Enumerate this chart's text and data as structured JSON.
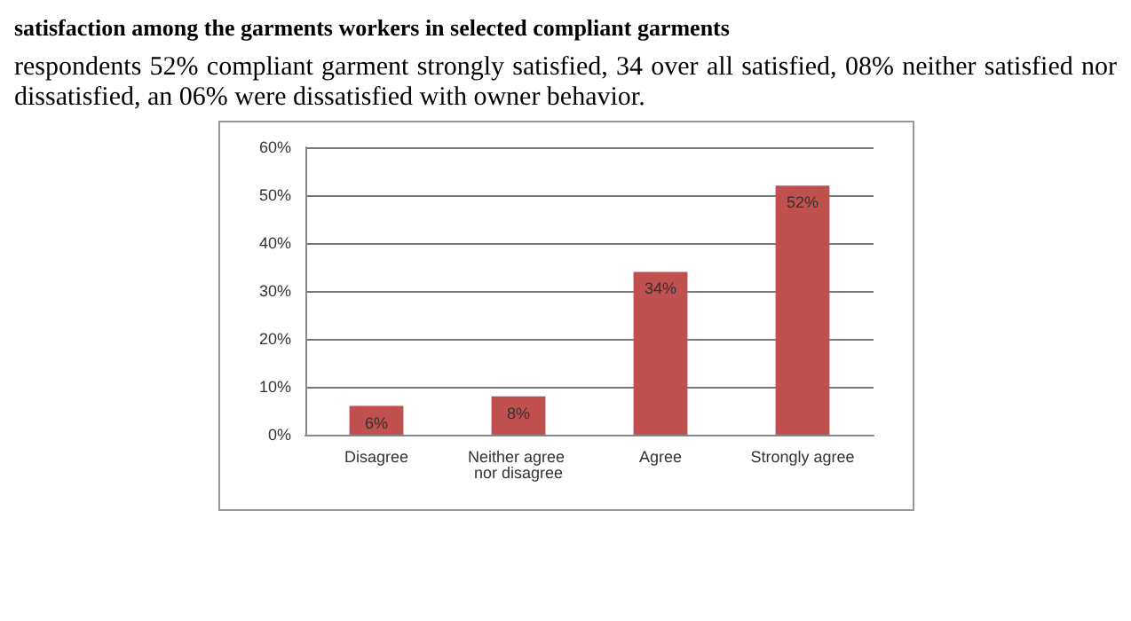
{
  "chart_data": {
    "type": "bar",
    "title": "satisfaction among the garments workers in selected compliant garments",
    "annotations": [
      "respondents 52% compliant garment strongly satisfied, 34 over all satisfied, 08% neither satisfied nor dissatisfied, an 06% were dissatisfied with owner behavior."
    ],
    "categories": [
      "Disagree",
      "Neither agree nor disagree",
      "Agree",
      "Strongly agree"
    ],
    "values": [
      6,
      8,
      34,
      52
    ],
    "color": "#c0504d",
    "value_labels": [
      "6%",
      "8%",
      "34%",
      "52%"
    ],
    "ylim": [
      0,
      60
    ],
    "yticks": [
      {
        "value": 0,
        "label": "0%"
      },
      {
        "value": 10,
        "label": "10%"
      },
      {
        "value": 20,
        "label": "20%"
      },
      {
        "value": 30,
        "label": "30%"
      },
      {
        "value": 40,
        "label": "40%"
      },
      {
        "value": 50,
        "label": "50%"
      },
      {
        "value": 60,
        "label": "60%"
      }
    ],
    "grid": "y"
  }
}
